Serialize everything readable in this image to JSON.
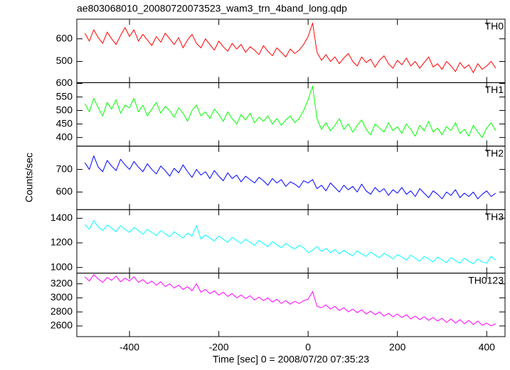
{
  "chart_data": {
    "type": "line",
    "title": "ae803068010_20080720073523_wam3_trn_4band_long.qdp",
    "x_label": "Time [sec] 0 = 2008/07/20 07:35:23",
    "y_label": "Counts/sec",
    "xlim": [
      -518,
      441
    ],
    "xticks": [
      -400,
      -200,
      0,
      200,
      400
    ],
    "x": [
      -500,
      -490,
      -480,
      -470,
      -460,
      -450,
      -440,
      -430,
      -420,
      -410,
      -400,
      -390,
      -380,
      -370,
      -360,
      -350,
      -340,
      -330,
      -320,
      -310,
      -300,
      -290,
      -280,
      -270,
      -260,
      -250,
      -240,
      -230,
      -220,
      -210,
      -200,
      -190,
      -180,
      -170,
      -160,
      -150,
      -140,
      -130,
      -120,
      -110,
      -100,
      -90,
      -80,
      -70,
      -60,
      -50,
      -40,
      -30,
      -20,
      -10,
      0,
      10,
      20,
      30,
      40,
      50,
      60,
      70,
      80,
      90,
      100,
      110,
      120,
      130,
      140,
      150,
      160,
      170,
      180,
      190,
      200,
      210,
      220,
      230,
      240,
      250,
      260,
      270,
      280,
      290,
      300,
      310,
      320,
      330,
      340,
      350,
      360,
      370,
      380,
      390,
      400,
      410,
      420
    ],
    "series": [
      {
        "name": "TH0",
        "color": "#ff0000",
        "ylim": [
          406,
          687
        ],
        "yticks": [
          500,
          600
        ],
        "values": [
          625,
          590,
          640,
          605,
          580,
          630,
          600,
          575,
          615,
          650,
          610,
          640,
          590,
          620,
          595,
          570,
          610,
          585,
          625,
          600,
          575,
          605,
          560,
          595,
          620,
          580,
          560,
          600,
          575,
          550,
          590,
          565,
          545,
          580,
          555,
          575,
          540,
          565,
          550,
          530,
          570,
          545,
          525,
          560,
          540,
          520,
          555,
          535,
          550,
          575,
          610,
          670,
          540,
          505,
          530,
          500,
          520,
          490,
          515,
          535,
          500,
          480,
          520,
          495,
          510,
          475,
          505,
          525,
          490,
          470,
          505,
          485,
          515,
          480,
          500,
          470,
          495,
          520,
          475,
          490,
          465,
          500,
          480,
          455,
          495,
          470,
          485,
          450,
          490,
          465,
          480,
          500,
          470
        ]
      },
      {
        "name": "TH1",
        "color": "#00ff00",
        "ylim": [
          368,
          603
        ],
        "yticks": [
          400,
          450,
          500,
          550,
          600
        ],
        "values": [
          525,
          495,
          545,
          510,
          480,
          530,
          505,
          540,
          490,
          520,
          510,
          545,
          495,
          520,
          480,
          505,
          530,
          490,
          515,
          500,
          475,
          510,
          490,
          460,
          500,
          520,
          480,
          495,
          470,
          505,
          485,
          460,
          495,
          470,
          450,
          485,
          465,
          490,
          455,
          475,
          460,
          480,
          450,
          470,
          445,
          465,
          480,
          455,
          470,
          500,
          540,
          590,
          470,
          430,
          455,
          425,
          445,
          470,
          430,
          450,
          420,
          445,
          465,
          430,
          410,
          450,
          435,
          420,
          455,
          425,
          440,
          415,
          450,
          430,
          405,
          445,
          425,
          460,
          420,
          435,
          410,
          440,
          425,
          455,
          415,
          430,
          405,
          445,
          420,
          400,
          435,
          455,
          425
        ]
      },
      {
        "name": "TH2",
        "color": "#0000ff",
        "ylim": [
          522,
          803
        ],
        "yticks": [
          600,
          700
        ],
        "values": [
          730,
          700,
          760,
          710,
          690,
          740,
          715,
          695,
          745,
          720,
          700,
          735,
          710,
          690,
          725,
          700,
          680,
          715,
          695,
          670,
          705,
          685,
          720,
          690,
          665,
          700,
          675,
          690,
          660,
          695,
          670,
          650,
          685,
          660,
          675,
          645,
          670,
          655,
          640,
          665,
          650,
          630,
          660,
          640,
          655,
          625,
          645,
          635,
          620,
          650,
          640,
          655,
          615,
          630,
          605,
          640,
          620,
          600,
          630,
          610,
          625,
          600,
          635,
          605,
          590,
          620,
          600,
          615,
          585,
          610,
          595,
          620,
          590,
          605,
          580,
          615,
          595,
          575,
          605,
          590,
          570,
          600,
          585,
          610,
          575,
          595,
          580,
          600,
          570,
          590,
          605,
          580,
          595
        ]
      },
      {
        "name": "TH3",
        "color": "#00ffff",
        "ylim": [
          954,
          1470
        ],
        "yticks": [
          1000,
          1200,
          1400
        ],
        "values": [
          1350,
          1310,
          1380,
          1330,
          1300,
          1345,
          1320,
          1290,
          1340,
          1310,
          1285,
          1325,
          1300,
          1270,
          1310,
          1285,
          1260,
          1300,
          1275,
          1250,
          1290,
          1265,
          1240,
          1280,
          1255,
          1340,
          1230,
          1265,
          1240,
          1215,
          1255,
          1230,
          1205,
          1245,
          1220,
          1195,
          1230,
          1205,
          1180,
          1220,
          1195,
          1170,
          1210,
          1185,
          1160,
          1195,
          1170,
          1150,
          1180,
          1160,
          1120,
          1140,
          1170,
          1130,
          1155,
          1120,
          1145,
          1110,
          1140,
          1115,
          1095,
          1135,
          1110,
          1090,
          1125,
          1100,
          1080,
          1115,
          1095,
          1070,
          1105,
          1085,
          1060,
          1100,
          1075,
          1050,
          1090,
          1070,
          1045,
          1085,
          1060,
          1040,
          1080,
          1055,
          1035,
          1075,
          1050,
          1030,
          1070,
          1045,
          1035,
          1090,
          1060
        ]
      },
      {
        "name": "TH0123",
        "color": "#ff00ff",
        "ylim": [
          2448,
          3352
        ],
        "yticks": [
          2600,
          2800,
          3000,
          3200
        ],
        "values": [
          3300,
          3240,
          3330,
          3270,
          3220,
          3290,
          3250,
          3310,
          3230,
          3280,
          3240,
          3300,
          3220,
          3260,
          3200,
          3240,
          3180,
          3230,
          3160,
          3200,
          3140,
          3180,
          3120,
          3160,
          3100,
          3200,
          3080,
          3120,
          3060,
          3100,
          3040,
          3080,
          3020,
          3060,
          3000,
          3040,
          2990,
          3030,
          2970,
          3010,
          2960,
          3000,
          2940,
          2980,
          2920,
          2960,
          2910,
          2950,
          2920,
          2960,
          2980,
          3090,
          2880,
          2860,
          2900,
          2840,
          2880,
          2820,
          2860,
          2800,
          2840,
          2790,
          2830,
          2770,
          2810,
          2760,
          2800,
          2740,
          2780,
          2730,
          2770,
          2720,
          2760,
          2700,
          2740,
          2690,
          2730,
          2680,
          2720,
          2670,
          2710,
          2650,
          2700,
          2640,
          2690,
          2630,
          2680,
          2620,
          2670,
          2610,
          2640,
          2600,
          2630
        ]
      }
    ]
  }
}
